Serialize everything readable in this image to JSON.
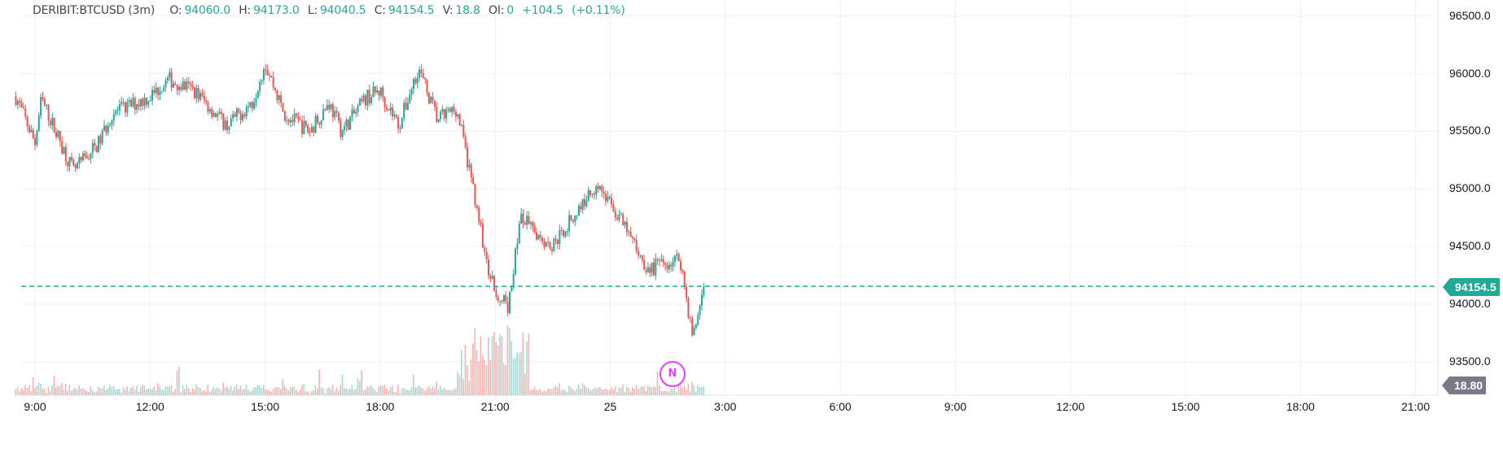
{
  "legend": {
    "symbol": "DERIBIT:BTCUSD (3m)",
    "open_label": "O:",
    "open": "94060.0",
    "high_label": "H:",
    "high": "94173.0",
    "low_label": "L:",
    "low": "94040.5",
    "close_label": "C:",
    "close": "94154.5",
    "volume_label": "V:",
    "volume": "18.8",
    "oi_label": "OI:",
    "oi": "0",
    "change": "+104.5",
    "change_pct": "(+0.11%)"
  },
  "price_badge": "94154.5",
  "volume_badge": "18.80",
  "event_marker": "N",
  "colors": {
    "up": "#26a69a",
    "down": "#ef5350",
    "up_volume": "#a7d9d3",
    "down_volume": "#f7b3b1",
    "last_price": "#22ab94",
    "grid": "#f0f0f3",
    "event": "#e040fb",
    "volume_badge": "#787b86"
  },
  "chart_data": {
    "type": "candlestick",
    "title": "DERIBIT:BTCUSD (3m)",
    "xlabel": "",
    "ylabel": "",
    "ylim": [
      93350,
      96600
    ],
    "grid": true,
    "y_ticks": [
      "96500.0",
      "96000.0",
      "95500.0",
      "95000.0",
      "94500.0",
      "94000.0",
      "93500.0"
    ],
    "x_ticks": [
      "9:00",
      "12:00",
      "15:00",
      "18:00",
      "21:00",
      "25",
      "3:00",
      "6:00",
      "9:00",
      "12:00",
      "15:00",
      "18:00",
      "21:00"
    ],
    "last_price": 94154.5,
    "last_volume": 18.8,
    "price_path": [
      {
        "time": "08:30",
        "close": 95800
      },
      {
        "time": "09:00",
        "close": 95400
      },
      {
        "time": "09:10",
        "close": 95780
      },
      {
        "time": "10:00",
        "close": 95150
      },
      {
        "time": "10:40",
        "close": 95400
      },
      {
        "time": "11:00",
        "close": 95650
      },
      {
        "time": "12:00",
        "close": 95800
      },
      {
        "time": "12:30",
        "close": 95950
      },
      {
        "time": "13:10",
        "close": 95850
      },
      {
        "time": "14:00",
        "close": 95550
      },
      {
        "time": "14:40",
        "close": 95750
      },
      {
        "time": "15:00",
        "close": 96100
      },
      {
        "time": "15:30",
        "close": 95650
      },
      {
        "time": "16:10",
        "close": 95500
      },
      {
        "time": "16:40",
        "close": 95750
      },
      {
        "time": "17:00",
        "close": 95500
      },
      {
        "time": "17:40",
        "close": 95800
      },
      {
        "time": "18:00",
        "close": 95850
      },
      {
        "time": "18:30",
        "close": 95550
      },
      {
        "time": "19:00",
        "close": 96050
      },
      {
        "time": "19:30",
        "close": 95600
      },
      {
        "time": "20:00",
        "close": 95700
      },
      {
        "time": "20:30",
        "close": 94900
      },
      {
        "time": "20:50",
        "close": 94250
      },
      {
        "time": "21:20",
        "close": 93950
      },
      {
        "time": "21:40",
        "close": 94750
      },
      {
        "time": "22:30",
        "close": 94500
      },
      {
        "time": "23:40",
        "close": 95050
      },
      {
        "time": "00:20",
        "close": 94700
      },
      {
        "time": "01:00",
        "close": 94300
      },
      {
        "time": "01:50",
        "close": 94400
      },
      {
        "time": "02:10",
        "close": 93700
      },
      {
        "time": "02:27",
        "close": 94154.5
      }
    ]
  }
}
